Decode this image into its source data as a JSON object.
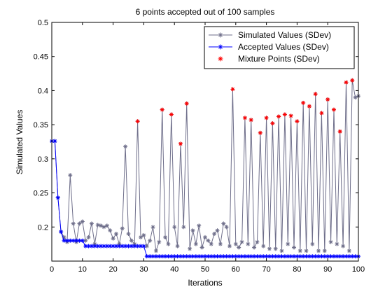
{
  "chart_data": {
    "type": "line",
    "title": "6 points accepted out of 100 samples",
    "xlabel": "Iterations",
    "ylabel": "Simulated Values",
    "xlim": [
      0,
      100
    ],
    "ylim": [
      0.15,
      0.5
    ],
    "xticks": [
      0,
      10,
      20,
      30,
      40,
      50,
      60,
      70,
      80,
      90,
      100
    ],
    "yticks": [
      0.2,
      0.25,
      0.3,
      0.35,
      0.4,
      0.45,
      0.5
    ],
    "ytick_labels": [
      "0.2",
      "0.25",
      "0.3",
      "0.35",
      "0.4",
      "0.45",
      "0.5"
    ],
    "grid": false,
    "legend_position": "top-right",
    "series": [
      {
        "name": "Simulated Values (SDev)",
        "color": "#6e6e8a",
        "marker": "asterisk",
        "x": [
          1,
          2,
          3,
          4,
          5,
          6,
          7,
          8,
          9,
          10,
          11,
          12,
          13,
          14,
          15,
          16,
          17,
          18,
          19,
          20,
          21,
          22,
          23,
          24,
          25,
          26,
          27,
          28,
          29,
          30,
          31,
          32,
          33,
          34,
          35,
          36,
          37,
          38,
          39,
          40,
          41,
          42,
          43,
          44,
          45,
          46,
          47,
          48,
          49,
          50,
          51,
          52,
          53,
          54,
          55,
          56,
          57,
          58,
          59,
          60,
          61,
          62,
          63,
          64,
          65,
          66,
          67,
          68,
          69,
          70,
          71,
          72,
          73,
          74,
          75,
          76,
          77,
          78,
          79,
          80,
          81,
          82,
          83,
          84,
          85,
          86,
          87,
          88,
          89,
          90,
          91,
          92,
          93,
          94,
          95,
          96,
          97,
          98,
          99,
          100
        ],
        "y": [
          0.326,
          0.243,
          0.193,
          0.185,
          0.178,
          0.276,
          0.205,
          0.178,
          0.205,
          0.208,
          0.18,
          0.185,
          0.205,
          0.175,
          0.203,
          0.202,
          0.2,
          0.202,
          0.195,
          0.183,
          0.19,
          0.175,
          0.198,
          0.318,
          0.19,
          0.18,
          0.175,
          0.355,
          0.185,
          0.188,
          0.172,
          0.18,
          0.2,
          0.165,
          0.178,
          0.372,
          0.185,
          0.175,
          0.365,
          0.2,
          0.172,
          0.322,
          0.2,
          0.381,
          0.168,
          0.195,
          0.175,
          0.202,
          0.17,
          0.185,
          0.18,
          0.175,
          0.19,
          0.195,
          0.175,
          0.205,
          0.2,
          0.172,
          0.402,
          0.175,
          0.17,
          0.178,
          0.36,
          0.175,
          0.357,
          0.17,
          0.178,
          0.338,
          0.172,
          0.36,
          0.168,
          0.352,
          0.168,
          0.362,
          0.165,
          0.365,
          0.175,
          0.363,
          0.17,
          0.355,
          0.165,
          0.382,
          0.165,
          0.377,
          0.175,
          0.395,
          0.165,
          0.367,
          0.165,
          0.387,
          0.178,
          0.372,
          0.175,
          0.34,
          0.172,
          0.412,
          0.165,
          0.415,
          0.39,
          0.392
        ]
      },
      {
        "name": "Accepted Values (SDev)",
        "color": "#0000ff",
        "marker": "asterisk",
        "x": [
          0,
          1,
          2,
          3,
          4,
          5,
          6,
          7,
          8,
          9,
          10,
          11,
          12,
          13,
          14,
          15,
          16,
          17,
          18,
          19,
          20,
          21,
          22,
          23,
          24,
          25,
          26,
          27,
          28,
          29,
          30,
          31,
          32,
          33,
          34,
          35,
          36,
          37,
          38,
          39,
          40,
          41,
          42,
          43,
          44,
          45,
          46,
          47,
          48,
          49,
          50,
          51,
          52,
          53,
          54,
          55,
          56,
          57,
          58,
          59,
          60,
          61,
          62,
          63,
          64,
          65,
          66,
          67,
          68,
          69,
          70,
          71,
          72,
          73,
          74,
          75,
          76,
          77,
          78,
          79,
          80,
          81,
          82,
          83,
          84,
          85,
          86,
          87,
          88,
          89,
          90,
          91,
          92,
          93,
          94,
          95,
          96,
          97,
          98,
          99,
          100
        ],
        "y": [
          0.326,
          0.326,
          0.243,
          0.193,
          0.18,
          0.18,
          0.18,
          0.18,
          0.18,
          0.18,
          0.18,
          0.172,
          0.172,
          0.172,
          0.172,
          0.172,
          0.172,
          0.172,
          0.172,
          0.172,
          0.172,
          0.172,
          0.172,
          0.172,
          0.172,
          0.172,
          0.172,
          0.172,
          0.172,
          0.172,
          0.172,
          0.157,
          0.157,
          0.157,
          0.157,
          0.157,
          0.157,
          0.157,
          0.157,
          0.157,
          0.157,
          0.157,
          0.157,
          0.157,
          0.157,
          0.157,
          0.157,
          0.157,
          0.157,
          0.157,
          0.157,
          0.157,
          0.157,
          0.157,
          0.157,
          0.157,
          0.157,
          0.157,
          0.157,
          0.157,
          0.157,
          0.157,
          0.157,
          0.157,
          0.157,
          0.157,
          0.157,
          0.157,
          0.157,
          0.157,
          0.157,
          0.157,
          0.157,
          0.157,
          0.157,
          0.157,
          0.157,
          0.157,
          0.157,
          0.157,
          0.157,
          0.157,
          0.157,
          0.157,
          0.157,
          0.157,
          0.157,
          0.157,
          0.157,
          0.157,
          0.157,
          0.157,
          0.157,
          0.157,
          0.157,
          0.157,
          0.157,
          0.157,
          0.157,
          0.157,
          0.157
        ]
      },
      {
        "name": "Mixture Points (SDev)",
        "color": "#ff0000",
        "marker": "asterisk",
        "line": false,
        "x": [
          28,
          36,
          39,
          42,
          44,
          59,
          63,
          65,
          68,
          70,
          72,
          74,
          76,
          78,
          80,
          82,
          84,
          86,
          88,
          90,
          92,
          94,
          96,
          98
        ],
        "y": [
          0.355,
          0.372,
          0.365,
          0.322,
          0.381,
          0.402,
          0.36,
          0.357,
          0.338,
          0.36,
          0.352,
          0.362,
          0.365,
          0.363,
          0.355,
          0.382,
          0.377,
          0.395,
          0.367,
          0.387,
          0.372,
          0.34,
          0.412,
          0.415
        ]
      }
    ]
  }
}
